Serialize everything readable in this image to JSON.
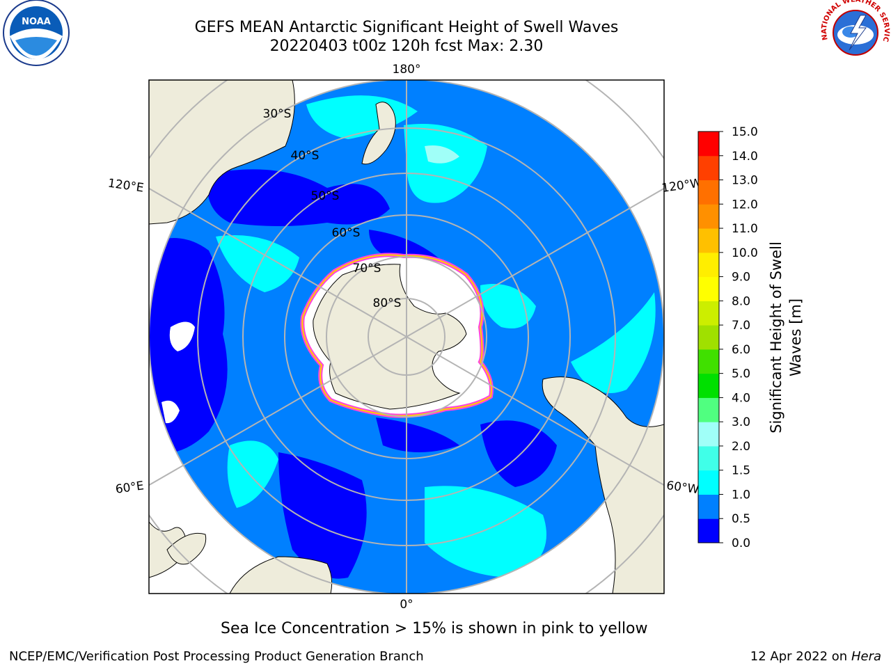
{
  "title_line1": "GEFS MEAN Antarctic Significant Height of Swell Waves",
  "title_line2": "20220403 t00z 120h fcst   Max: 2.30",
  "note": "Sea Ice Concentration > 15% is shown in pink to yellow",
  "credit_left": "NCEP/EMC/Verification Post Processing Product Generation Branch",
  "credit_right_prefix": "12 Apr 2022 on ",
  "credit_right_host": "Hera",
  "logos": {
    "left": {
      "icon": "noaa-logo",
      "text": "NOAA"
    },
    "right": {
      "icon": "national-weather-service-logo",
      "text": "NATIONAL WEATHER SERVICE"
    }
  },
  "map": {
    "projection": "south-polar-stereographic",
    "meridian_labels": [
      "180°",
      "120°E",
      "120°W",
      "60°E",
      "60°W",
      "0°"
    ],
    "parallel_labels": [
      "30°S",
      "40°S",
      "50°S",
      "60°S",
      "70°S",
      "80°S"
    ],
    "colors": {
      "land": "#eeecdb",
      "sea_ice": "#ffffff",
      "ice_edge_pink": "#ff44dd",
      "ice_edge_yellow": "#ffd000",
      "grid": "#b4b4b4"
    }
  },
  "colorbar": {
    "label_line1": "Significant Height of Swell",
    "label_line2": "Waves [m]",
    "ticks": [
      "0.0",
      "0.5",
      "1.0",
      "1.5",
      "2.0",
      "3.0",
      "4.0",
      "5.0",
      "6.0",
      "7.0",
      "8.0",
      "9.0",
      "10.0",
      "11.0",
      "12.0",
      "13.0",
      "14.0",
      "15.0"
    ],
    "colors": [
      "#0000ff",
      "#0080ff",
      "#00ffff",
      "#40ffe8",
      "#a0fff8",
      "#50ff80",
      "#00e000",
      "#40e000",
      "#a0e000",
      "#ccee00",
      "#ffff00",
      "#ffee00",
      "#ffc000",
      "#ff9000",
      "#ff7000",
      "#ff4000",
      "#ff0000"
    ]
  },
  "chart_data": {
    "type": "heatmap",
    "title": "GEFS MEAN Antarctic Significant Height of Swell Waves",
    "subtitle": "20220403 t00z 120h fcst   Max: 2.30",
    "colorbar_label": "Significant Height of Swell Waves [m]",
    "colorbar_range": [
      0,
      15
    ],
    "colorbar_ticks": [
      0,
      0.5,
      1,
      1.5,
      2,
      3,
      4,
      5,
      6,
      7,
      8,
      9,
      10,
      11,
      12,
      13,
      14,
      15
    ],
    "max_value": 2.3,
    "grid": true
  }
}
